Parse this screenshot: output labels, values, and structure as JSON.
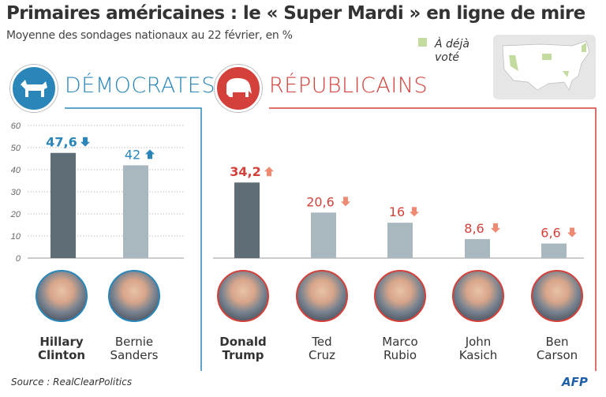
{
  "title": "Primaires américaines : le « Super Mardi » en ligne de mire",
  "subtitle": "Moyenne des sondages nationaux au 22 février, en %",
  "legend": {
    "line1": "À déjà",
    "line2": "voté",
    "color": "#c4dba0"
  },
  "source": "Source : RealClearPolitics",
  "logo_text": "AFP",
  "colors": {
    "dem": "#2a86b8",
    "rep": "#d4413b",
    "leader_bar": "#5f6e76",
    "other_bar": "#a9b7bf",
    "rep_arrow": "#ec8a74"
  },
  "chart_data": [
    {
      "type": "bar",
      "title": "DÉMOCRATES",
      "ylim": [
        0,
        60
      ],
      "yticks": [
        0,
        10,
        20,
        30,
        40,
        50,
        60
      ],
      "grid": true,
      "categories": [
        "Hillary Clinton",
        "Bernie Sanders"
      ],
      "first": [
        "Hillary",
        "Bernie"
      ],
      "last": [
        "Clinton",
        "Sanders"
      ],
      "values": [
        47.6,
        42
      ],
      "labels": [
        "47,6",
        "42"
      ],
      "trend": [
        "down",
        "up"
      ]
    },
    {
      "type": "bar",
      "title": "RÉPUBLICAINS",
      "ylim": [
        0,
        60
      ],
      "grid": false,
      "categories": [
        "Donald Trump",
        "Ted Cruz",
        "Marco Rubio",
        "John Kasich",
        "Ben Carson"
      ],
      "first": [
        "Donald",
        "Ted",
        "Marco",
        "John",
        "Ben"
      ],
      "last": [
        "Trump",
        "Cruz",
        "Rubio",
        "Kasich",
        "Carson"
      ],
      "values": [
        34.2,
        20.6,
        16,
        8.6,
        6.6
      ],
      "labels": [
        "34,2",
        "20,6",
        "16",
        "8,6",
        "6,6"
      ],
      "trend": [
        "up",
        "down",
        "down",
        "down",
        "down"
      ]
    }
  ]
}
